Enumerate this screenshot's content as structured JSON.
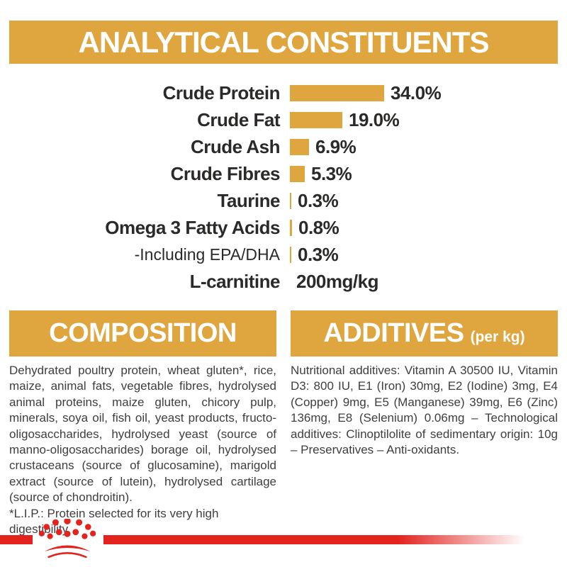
{
  "colors": {
    "gold": "#DFA63F",
    "red": "#E2231E",
    "heading_text": "#FFFFFF",
    "chart_text": "#2B2A29",
    "body_text": "#3E3E3E"
  },
  "analytical": {
    "title": "ANALYTICAL CONSTITUENTS",
    "rows": [
      {
        "label": "Crude Protein",
        "value": "34.0%",
        "pct": 34.0,
        "light": false
      },
      {
        "label": "Crude Fat",
        "value": "19.0%",
        "pct": 19.0,
        "light": false
      },
      {
        "label": "Crude Ash",
        "value": "6.9%",
        "pct": 6.9,
        "light": false
      },
      {
        "label": "Crude Fibres",
        "value": "5.3%",
        "pct": 5.3,
        "light": false
      },
      {
        "label": "Taurine",
        "value": "0.3%",
        "pct": 0.3,
        "light": false
      },
      {
        "label": "Omega 3 Fatty Acids",
        "value": "0.8%",
        "pct": 0.8,
        "light": false
      },
      {
        "label": "-Including EPA/DHA",
        "value": "0.3%",
        "pct": 0.3,
        "light": true
      },
      {
        "label": "L-carnitine",
        "value": "200mg/kg",
        "pct": null,
        "light": false
      }
    ]
  },
  "composition": {
    "title": "COMPOSITION",
    "body": "Dehydrated poultry protein, wheat gluten*, rice, maize, animal fats, vegetable fibres, hydrolysed animal proteins, maize gluten, chicory pulp, minerals, soya oil, fish oil, yeast products, fructo-oligosaccharides, hydrolysed yeast (source of manno-oligosaccharides) borage oil, hydrolysed crustaceans (source of glucosamine), marigold extract (source of lutein), hydrolysed cartilage (source of chondroitin).",
    "footnote": "*L.I.P.: Protein selected for its very high digestibility."
  },
  "additives": {
    "title": "ADDITIVES",
    "title_suffix": "(per kg)",
    "body": "Nutritional additives: Vitamin A 30500 IU, Vitamin D3: 800 IU, E1 (Iron) 30mg, E2 (Iodine) 3mg, E4 (Copper) 9mg, E5 (Manganese) 39mg, E6 (Zinc) 136mg, E8 (Selenium) 0.06mg – Technological additives: Clinoptilolite of sedimentary origin: 10g – Preservatives – Anti-oxidants."
  },
  "brand": {
    "logo": "royal-canin-crown"
  },
  "chart_data": {
    "type": "bar",
    "orientation": "horizontal",
    "title": "ANALYTICAL CONSTITUENTS",
    "categories": [
      "Crude Protein",
      "Crude Fat",
      "Crude Ash",
      "Crude Fibres",
      "Taurine",
      "Omega 3 Fatty Acids",
      "-Including EPA/DHA",
      "L-carnitine"
    ],
    "values": [
      34.0,
      19.0,
      6.9,
      5.3,
      0.3,
      0.8,
      0.3,
      null
    ],
    "value_labels": [
      "34.0%",
      "19.0%",
      "6.9%",
      "5.3%",
      "0.3%",
      "0.8%",
      "0.3%",
      "200mg/kg"
    ],
    "unit": "percent except L-carnitine (mg/kg)",
    "bar_color": "#DFA63F",
    "xlim": [
      0,
      40
    ],
    "grid": false,
    "legend": false
  }
}
